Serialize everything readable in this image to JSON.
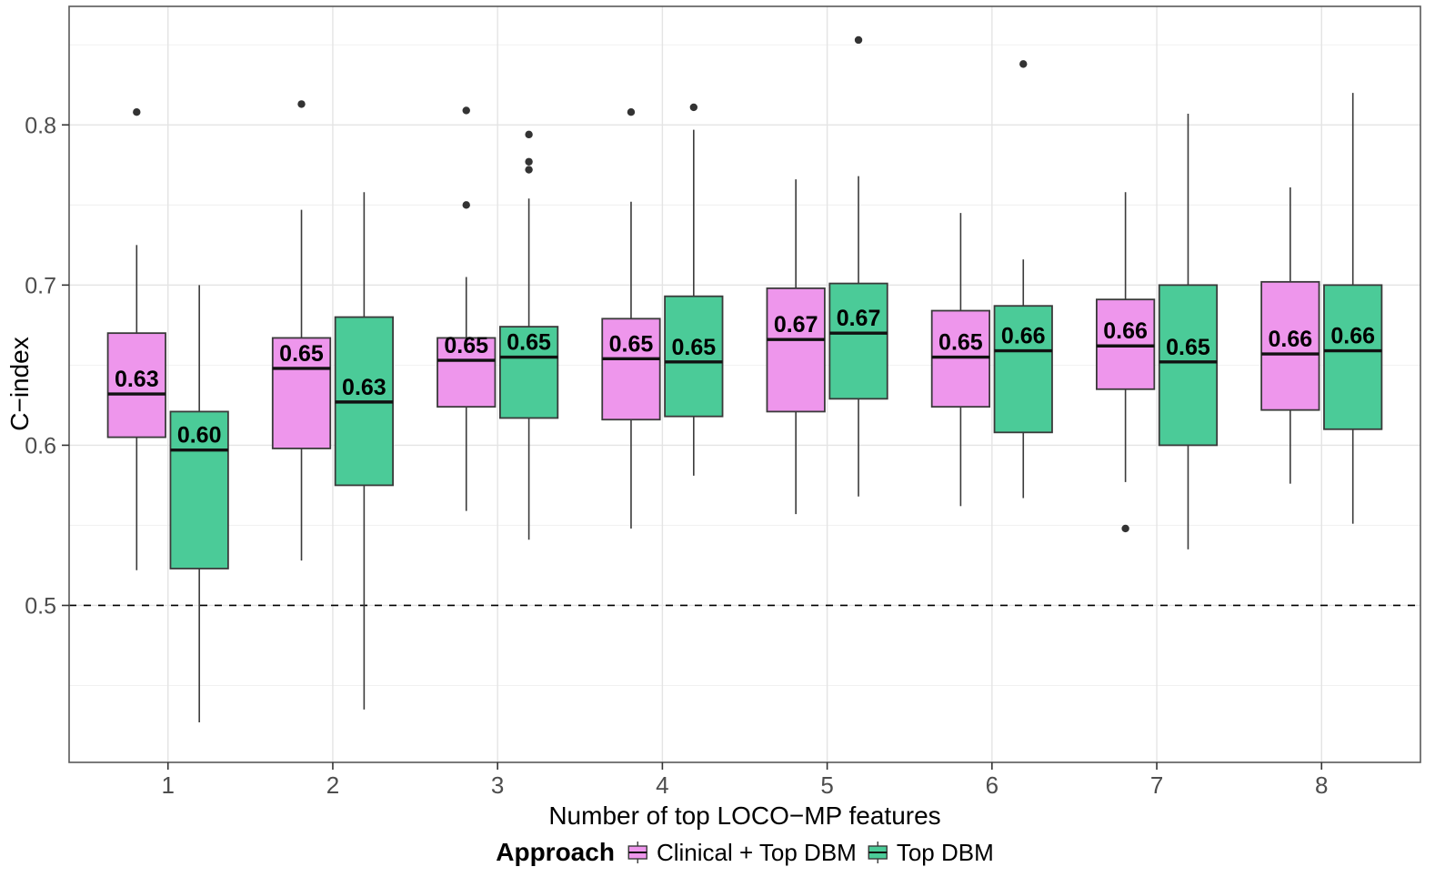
{
  "figure": {
    "background": "#ffffff",
    "panel_border_color": "#595959",
    "grid_major_color": "#e4e4e4",
    "grid_minor_color": "#f1f1f1",
    "box_stroke_color": "#3a3a3a",
    "median_line_color": "#111111",
    "outlier_color": "#333333",
    "tick_label_color": "#4d4d4d",
    "reference_line": {
      "value": 0.5,
      "style": "dashed",
      "color": "#000000"
    },
    "y_axis": {
      "title": "C−index",
      "ticks": [
        0.5,
        0.6,
        0.7,
        0.8
      ],
      "tick_labels": [
        "0.5",
        "0.6",
        "0.7",
        "0.8"
      ],
      "minor_gridlines": [
        0.45,
        0.55,
        0.65,
        0.75,
        0.85
      ]
    },
    "x_axis": {
      "title": "Number of top LOCO−MP features",
      "tick_labels": [
        "1",
        "2",
        "3",
        "4",
        "5",
        "6",
        "7",
        "8"
      ]
    },
    "legend": {
      "title": "Approach",
      "position": "bottom",
      "entries": [
        {
          "label": "Clinical + Top DBM",
          "color": "#ee96ec"
        },
        {
          "label": "Top DBM",
          "color": "#4bcb98"
        }
      ]
    }
  },
  "chart_data": {
    "type": "grouped_boxplot",
    "title": "",
    "xlabel": "Number of top LOCO−MP features",
    "ylabel": "C−index",
    "ylim": [
      0.402,
      0.874
    ],
    "y_breaks": [
      0.5,
      0.6,
      0.7,
      0.8
    ],
    "reference_line": 0.5,
    "legend_position": "bottom",
    "grid": true,
    "categories": [
      "1",
      "2",
      "3",
      "4",
      "5",
      "6",
      "7",
      "8"
    ],
    "series": [
      {
        "name": "Clinical + Top DBM",
        "color": "#ee96ec",
        "boxes": [
          {
            "x": "1",
            "label": "0.63",
            "whisker_low": 0.522,
            "q1": 0.605,
            "median": 0.632,
            "q3": 0.67,
            "whisker_high": 0.725,
            "outliers": [
              0.808
            ]
          },
          {
            "x": "2",
            "label": "0.65",
            "whisker_low": 0.528,
            "q1": 0.598,
            "median": 0.648,
            "q3": 0.667,
            "whisker_high": 0.747,
            "outliers": [
              0.813
            ]
          },
          {
            "x": "3",
            "label": "0.65",
            "whisker_low": 0.559,
            "q1": 0.624,
            "median": 0.653,
            "q3": 0.667,
            "whisker_high": 0.705,
            "outliers": [
              0.809,
              0.75
            ]
          },
          {
            "x": "4",
            "label": "0.65",
            "whisker_low": 0.548,
            "q1": 0.616,
            "median": 0.654,
            "q3": 0.679,
            "whisker_high": 0.752,
            "outliers": [
              0.808
            ]
          },
          {
            "x": "5",
            "label": "0.67",
            "whisker_low": 0.557,
            "q1": 0.621,
            "median": 0.666,
            "q3": 0.698,
            "whisker_high": 0.766,
            "outliers": []
          },
          {
            "x": "6",
            "label": "0.65",
            "whisker_low": 0.562,
            "q1": 0.624,
            "median": 0.655,
            "q3": 0.684,
            "whisker_high": 0.745,
            "outliers": []
          },
          {
            "x": "7",
            "label": "0.66",
            "whisker_low": 0.577,
            "q1": 0.635,
            "median": 0.662,
            "q3": 0.691,
            "whisker_high": 0.758,
            "outliers": [
              0.548
            ]
          },
          {
            "x": "8",
            "label": "0.66",
            "whisker_low": 0.576,
            "q1": 0.622,
            "median": 0.657,
            "q3": 0.702,
            "whisker_high": 0.761,
            "outliers": []
          }
        ]
      },
      {
        "name": "Top DBM",
        "color": "#4bcb98",
        "boxes": [
          {
            "x": "1",
            "label": "0.60",
            "whisker_low": 0.427,
            "q1": 0.523,
            "median": 0.597,
            "q3": 0.621,
            "whisker_high": 0.7,
            "outliers": []
          },
          {
            "x": "2",
            "label": "0.63",
            "whisker_low": 0.435,
            "q1": 0.575,
            "median": 0.627,
            "q3": 0.68,
            "whisker_high": 0.758,
            "outliers": []
          },
          {
            "x": "3",
            "label": "0.65",
            "whisker_low": 0.541,
            "q1": 0.617,
            "median": 0.655,
            "q3": 0.674,
            "whisker_high": 0.754,
            "outliers": [
              0.794,
              0.777,
              0.772
            ]
          },
          {
            "x": "4",
            "label": "0.65",
            "whisker_low": 0.581,
            "q1": 0.618,
            "median": 0.652,
            "q3": 0.693,
            "whisker_high": 0.797,
            "outliers": [
              0.811
            ]
          },
          {
            "x": "5",
            "label": "0.67",
            "whisker_low": 0.568,
            "q1": 0.629,
            "median": 0.67,
            "q3": 0.701,
            "whisker_high": 0.768,
            "outliers": [
              0.853
            ]
          },
          {
            "x": "6",
            "label": "0.66",
            "whisker_low": 0.567,
            "q1": 0.608,
            "median": 0.659,
            "q3": 0.687,
            "whisker_high": 0.716,
            "outliers": [
              0.838
            ]
          },
          {
            "x": "7",
            "label": "0.65",
            "whisker_low": 0.535,
            "q1": 0.6,
            "median": 0.652,
            "q3": 0.7,
            "whisker_high": 0.807,
            "outliers": []
          },
          {
            "x": "8",
            "label": "0.66",
            "whisker_low": 0.551,
            "q1": 0.61,
            "median": 0.659,
            "q3": 0.7,
            "whisker_high": 0.82,
            "outliers": []
          }
        ]
      }
    ]
  }
}
